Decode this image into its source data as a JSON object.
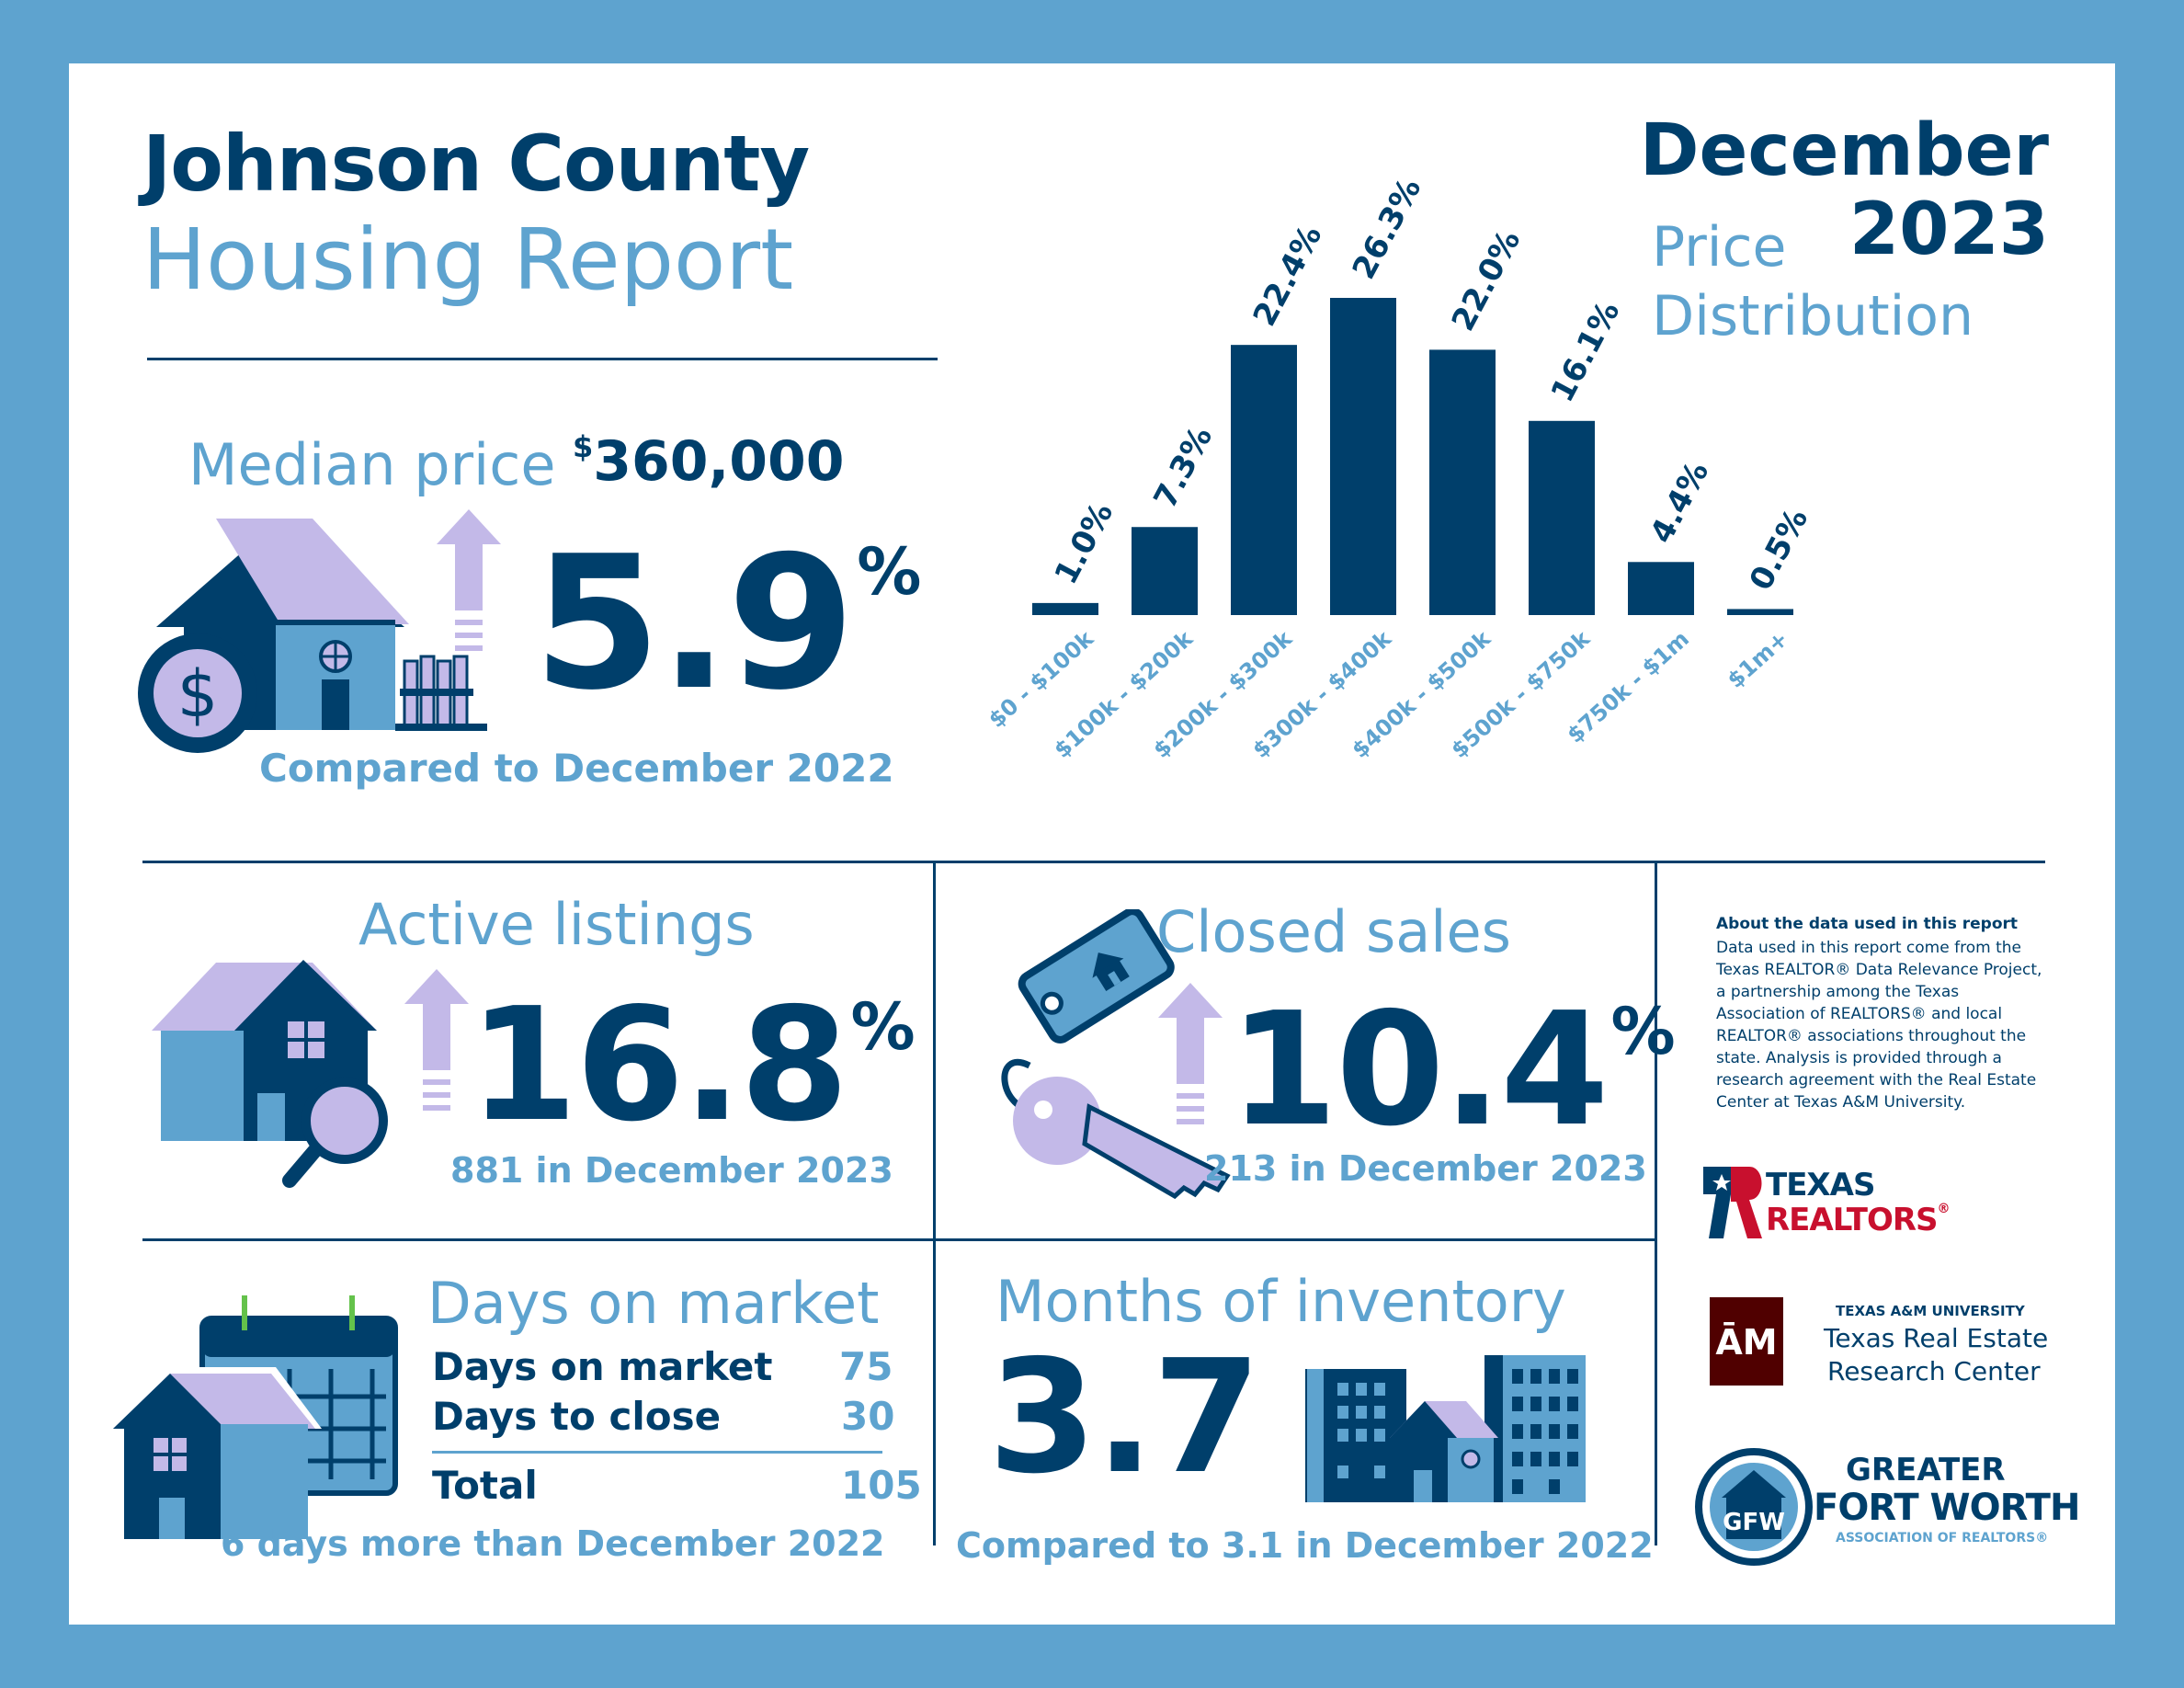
{
  "header": {
    "county": "Johnson County",
    "report": "Housing Report",
    "month": "December",
    "year": "2023"
  },
  "median": {
    "label": "Median price",
    "currency": "$",
    "value": "360,000",
    "change": "5.9",
    "change_unit": "%",
    "compared": "Compared to December 2022"
  },
  "chart_section": {
    "title_line1": "Price",
    "title_line2": "Distribution"
  },
  "chart_data": {
    "type": "bar",
    "categories": [
      "$0 - $100k",
      "$100k - $200k",
      "$200k - $300k",
      "$300k - $400k",
      "$400k - $500k",
      "$500k - $750k",
      "$750k - $1m",
      "$1m+"
    ],
    "values": [
      1.0,
      7.3,
      22.4,
      26.3,
      22.0,
      16.1,
      4.4,
      0.5
    ],
    "value_labels": [
      "1.0%",
      "7.3%",
      "22.4%",
      "26.3%",
      "22.0%",
      "16.1%",
      "4.4%",
      "0.5%"
    ],
    "title": "Price Distribution",
    "ylim": [
      0,
      26.3
    ],
    "grid": false,
    "bar_color": "#003f6b",
    "label_color": "#5ea3cf"
  },
  "active": {
    "label": "Active listings",
    "change": "16.8",
    "change_unit": "%",
    "note": "881 in December 2023"
  },
  "closed": {
    "label": "Closed sales",
    "change": "10.4",
    "change_unit": "%",
    "note": "213 in December 2023"
  },
  "dom": {
    "label": "Days on market",
    "rows": [
      {
        "label": "Days on market",
        "value": "75"
      },
      {
        "label": "Days to close",
        "value": "30"
      }
    ],
    "total_label": "Total",
    "total_value": "105",
    "note": "6 days more than December 2022"
  },
  "inventory": {
    "label": "Months of inventory",
    "value": "3.7",
    "note": "Compared to 3.1 in December 2022"
  },
  "about": {
    "heading": "About the data used in this report",
    "lines": [
      "Data used in this report come from the",
      "Texas REALTOR® Data Relevance Project,",
      "a partnership among the Texas",
      "Association of REALTORS® and local",
      "REALTOR® associations throughout the",
      "state. Analysis is provided through a",
      "research agreement with the Real Estate",
      "Center at Texas A&M University."
    ]
  },
  "logos": {
    "tr_line1": "TEXAS",
    "tr_line2": "REALTORS",
    "tr_mark": "®",
    "tamu_small": "TEXAS A&M UNIVERSITY",
    "tamu_line1": "Texas Real Estate",
    "tamu_line2": "Research Center",
    "gfw_line1": "GREATER",
    "gfw_line2": "FORT WORTH",
    "gfw_line3": "ASSOCIATION OF REALTORS®",
    "gfw_mark": "GFW"
  },
  "colors": {
    "navy": "#003f6b",
    "light_blue": "#5ea3cf",
    "lavender": "#c3b9e8",
    "maroon": "#500000",
    "red": "#c8102e",
    "border": "#5ea3cf"
  }
}
